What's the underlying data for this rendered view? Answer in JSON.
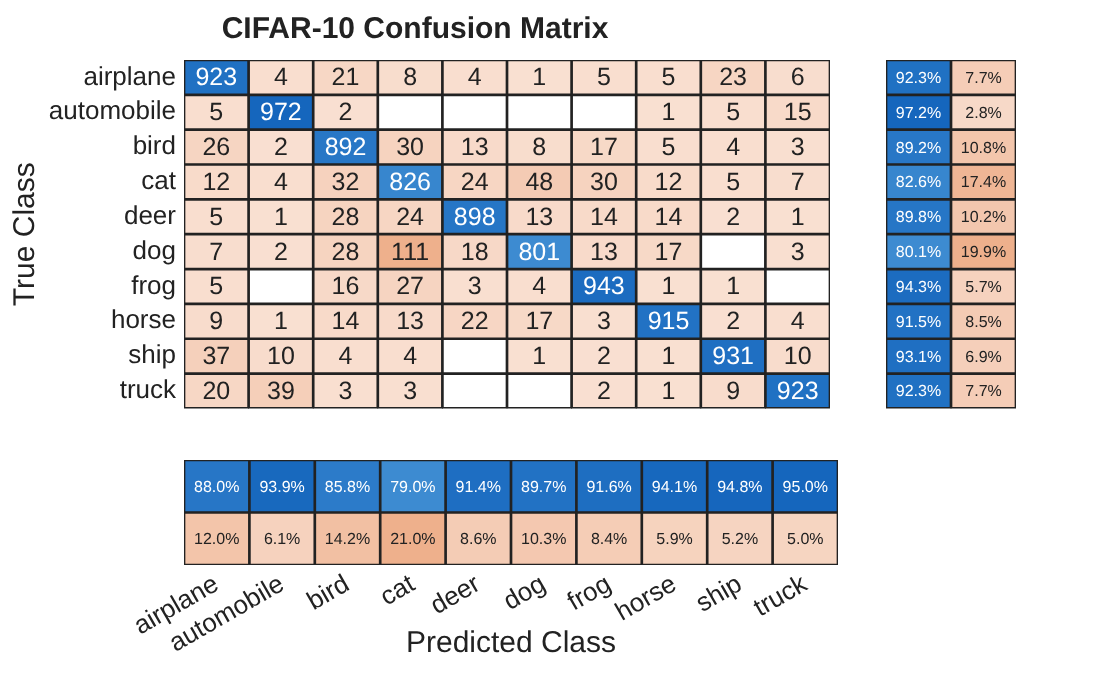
{
  "chart_data": [
    {
      "type": "heatmap",
      "title": "CIFAR-10 Confusion Matrix",
      "ylabel": "True Class",
      "tick_labels": "y",
      "data_labels": true,
      "categories": [
        null,
        null,
        null,
        null,
        null,
        null,
        null,
        null,
        null,
        null
      ],
      "y_categories": [
        "airplane",
        "automobile",
        "bird",
        "cat",
        "deer",
        "dog",
        "frog",
        "horse",
        "ship",
        "truck"
      ],
      "cells": [
        [
          923,
          4,
          21,
          8,
          4,
          1,
          5,
          5,
          23,
          6
        ],
        [
          5,
          972,
          2,
          null,
          null,
          null,
          null,
          1,
          5,
          15
        ],
        [
          26,
          2,
          892,
          30,
          13,
          8,
          17,
          5,
          4,
          3
        ],
        [
          12,
          4,
          32,
          826,
          24,
          48,
          30,
          12,
          5,
          7
        ],
        [
          5,
          1,
          28,
          24,
          898,
          13,
          14,
          14,
          2,
          1
        ],
        [
          7,
          2,
          28,
          111,
          18,
          801,
          13,
          17,
          null,
          3
        ],
        [
          5,
          null,
          16,
          27,
          3,
          4,
          943,
          1,
          1,
          null
        ],
        [
          9,
          1,
          14,
          13,
          22,
          17,
          3,
          915,
          2,
          4
        ],
        [
          37,
          10,
          4,
          4,
          null,
          1,
          2,
          1,
          931,
          10
        ],
        [
          20,
          39,
          3,
          3,
          null,
          null,
          2,
          1,
          9,
          923
        ]
      ]
    },
    {
      "type": "heatmap",
      "tick_labels": false,
      "categories": [
        null,
        null
      ],
      "y_categories": [
        null,
        null,
        null,
        null,
        null,
        null,
        null,
        null,
        null,
        null
      ],
      "cells": [
        [
          92.3,
          7.7
        ],
        [
          97.2,
          2.8
        ],
        [
          89.2,
          10.8
        ],
        [
          82.6,
          17.4
        ],
        [
          89.8,
          10.2
        ],
        [
          80.1,
          19.9
        ],
        [
          94.3,
          5.7
        ],
        [
          91.5,
          8.5
        ],
        [
          93.1,
          6.9
        ],
        [
          92.3,
          7.7
        ]
      ],
      "cell_labels": [
        [
          "92.3%",
          "7.7%"
        ],
        [
          "97.2%",
          "2.8%"
        ],
        [
          "89.2%",
          "10.8%"
        ],
        [
          "82.6%",
          "17.4%"
        ],
        [
          "89.8%",
          "10.2%"
        ],
        [
          "80.1%",
          "19.9%"
        ],
        [
          "94.3%",
          "5.7%"
        ],
        [
          "91.5%",
          "8.5%"
        ],
        [
          "93.1%",
          "6.9%"
        ],
        [
          "92.3%",
          "7.7%"
        ]
      ]
    },
    {
      "type": "heatmap",
      "xlabel": "Predicted Class",
      "tick_labels": "x",
      "categories": [
        "airplane",
        "automobile",
        "bird",
        "cat",
        "deer",
        "dog",
        "frog",
        "horse",
        "ship",
        "truck"
      ],
      "y_categories": [
        null,
        null
      ],
      "cells": [
        [
          88.0,
          93.9,
          85.8,
          79.0,
          91.4,
          89.7,
          91.6,
          94.1,
          94.8,
          95.0
        ],
        [
          12.0,
          6.1,
          14.2,
          21.0,
          8.6,
          10.3,
          8.4,
          5.9,
          5.2,
          5.0
        ]
      ],
      "cell_labels": [
        [
          "88.0%",
          "93.9%",
          "85.8%",
          "79.0%",
          "91.4%",
          "89.7%",
          "91.6%",
          "94.1%",
          "94.8%",
          "95.0%"
        ],
        [
          "12.0%",
          "6.1%",
          "14.2%",
          "21.0%",
          "8.6%",
          "10.3%",
          "8.4%",
          "5.9%",
          "5.2%",
          "5.0%"
        ]
      ]
    }
  ]
}
